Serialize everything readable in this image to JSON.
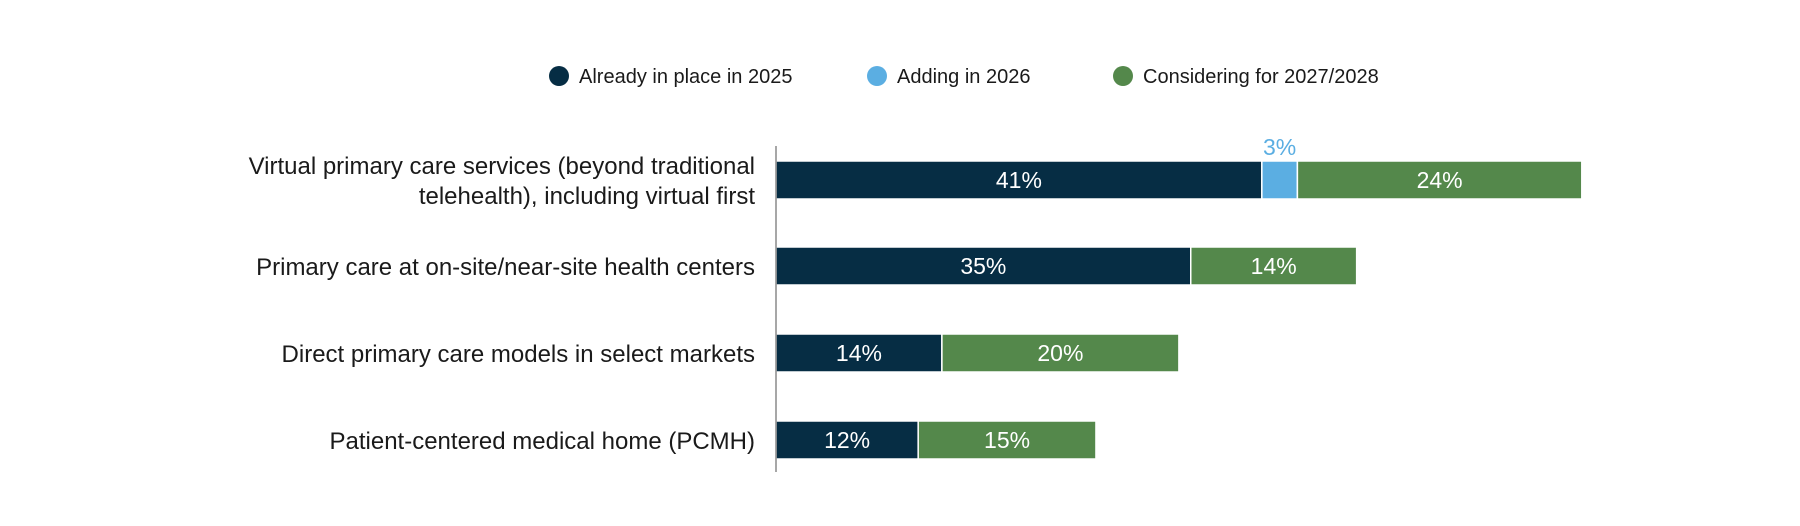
{
  "chart_data": {
    "type": "bar",
    "orientation": "horizontal",
    "stacked": true,
    "title": "",
    "xlabel": "",
    "ylabel": "",
    "legend_position": "top",
    "grid": false,
    "xlim": [
      0,
      100
    ],
    "categories": [
      [
        "Virtual primary care services (beyond traditional",
        "telehealth), including virtual first"
      ],
      [
        "Primary care at on-site/near-site health centers"
      ],
      [
        "Direct primary care models in select markets"
      ],
      [
        "Patient-centered medical home (PCMH)"
      ]
    ],
    "series": [
      {
        "name": "Already in place in 2025",
        "color": "#062d44",
        "values": [
          41,
          35,
          14,
          12
        ],
        "labels": [
          "41%",
          "35%",
          "14%",
          "12%"
        ]
      },
      {
        "name": "Adding in 2026",
        "color": "#5baee2",
        "values": [
          3,
          0,
          0,
          0
        ],
        "labels": [
          "3%",
          "",
          "",
          ""
        ]
      },
      {
        "name": "Considering for 2027/2028",
        "color": "#54884b",
        "values": [
          24,
          14,
          20,
          15
        ],
        "labels": [
          "24%",
          "14%",
          "20%",
          "15%"
        ]
      }
    ]
  }
}
